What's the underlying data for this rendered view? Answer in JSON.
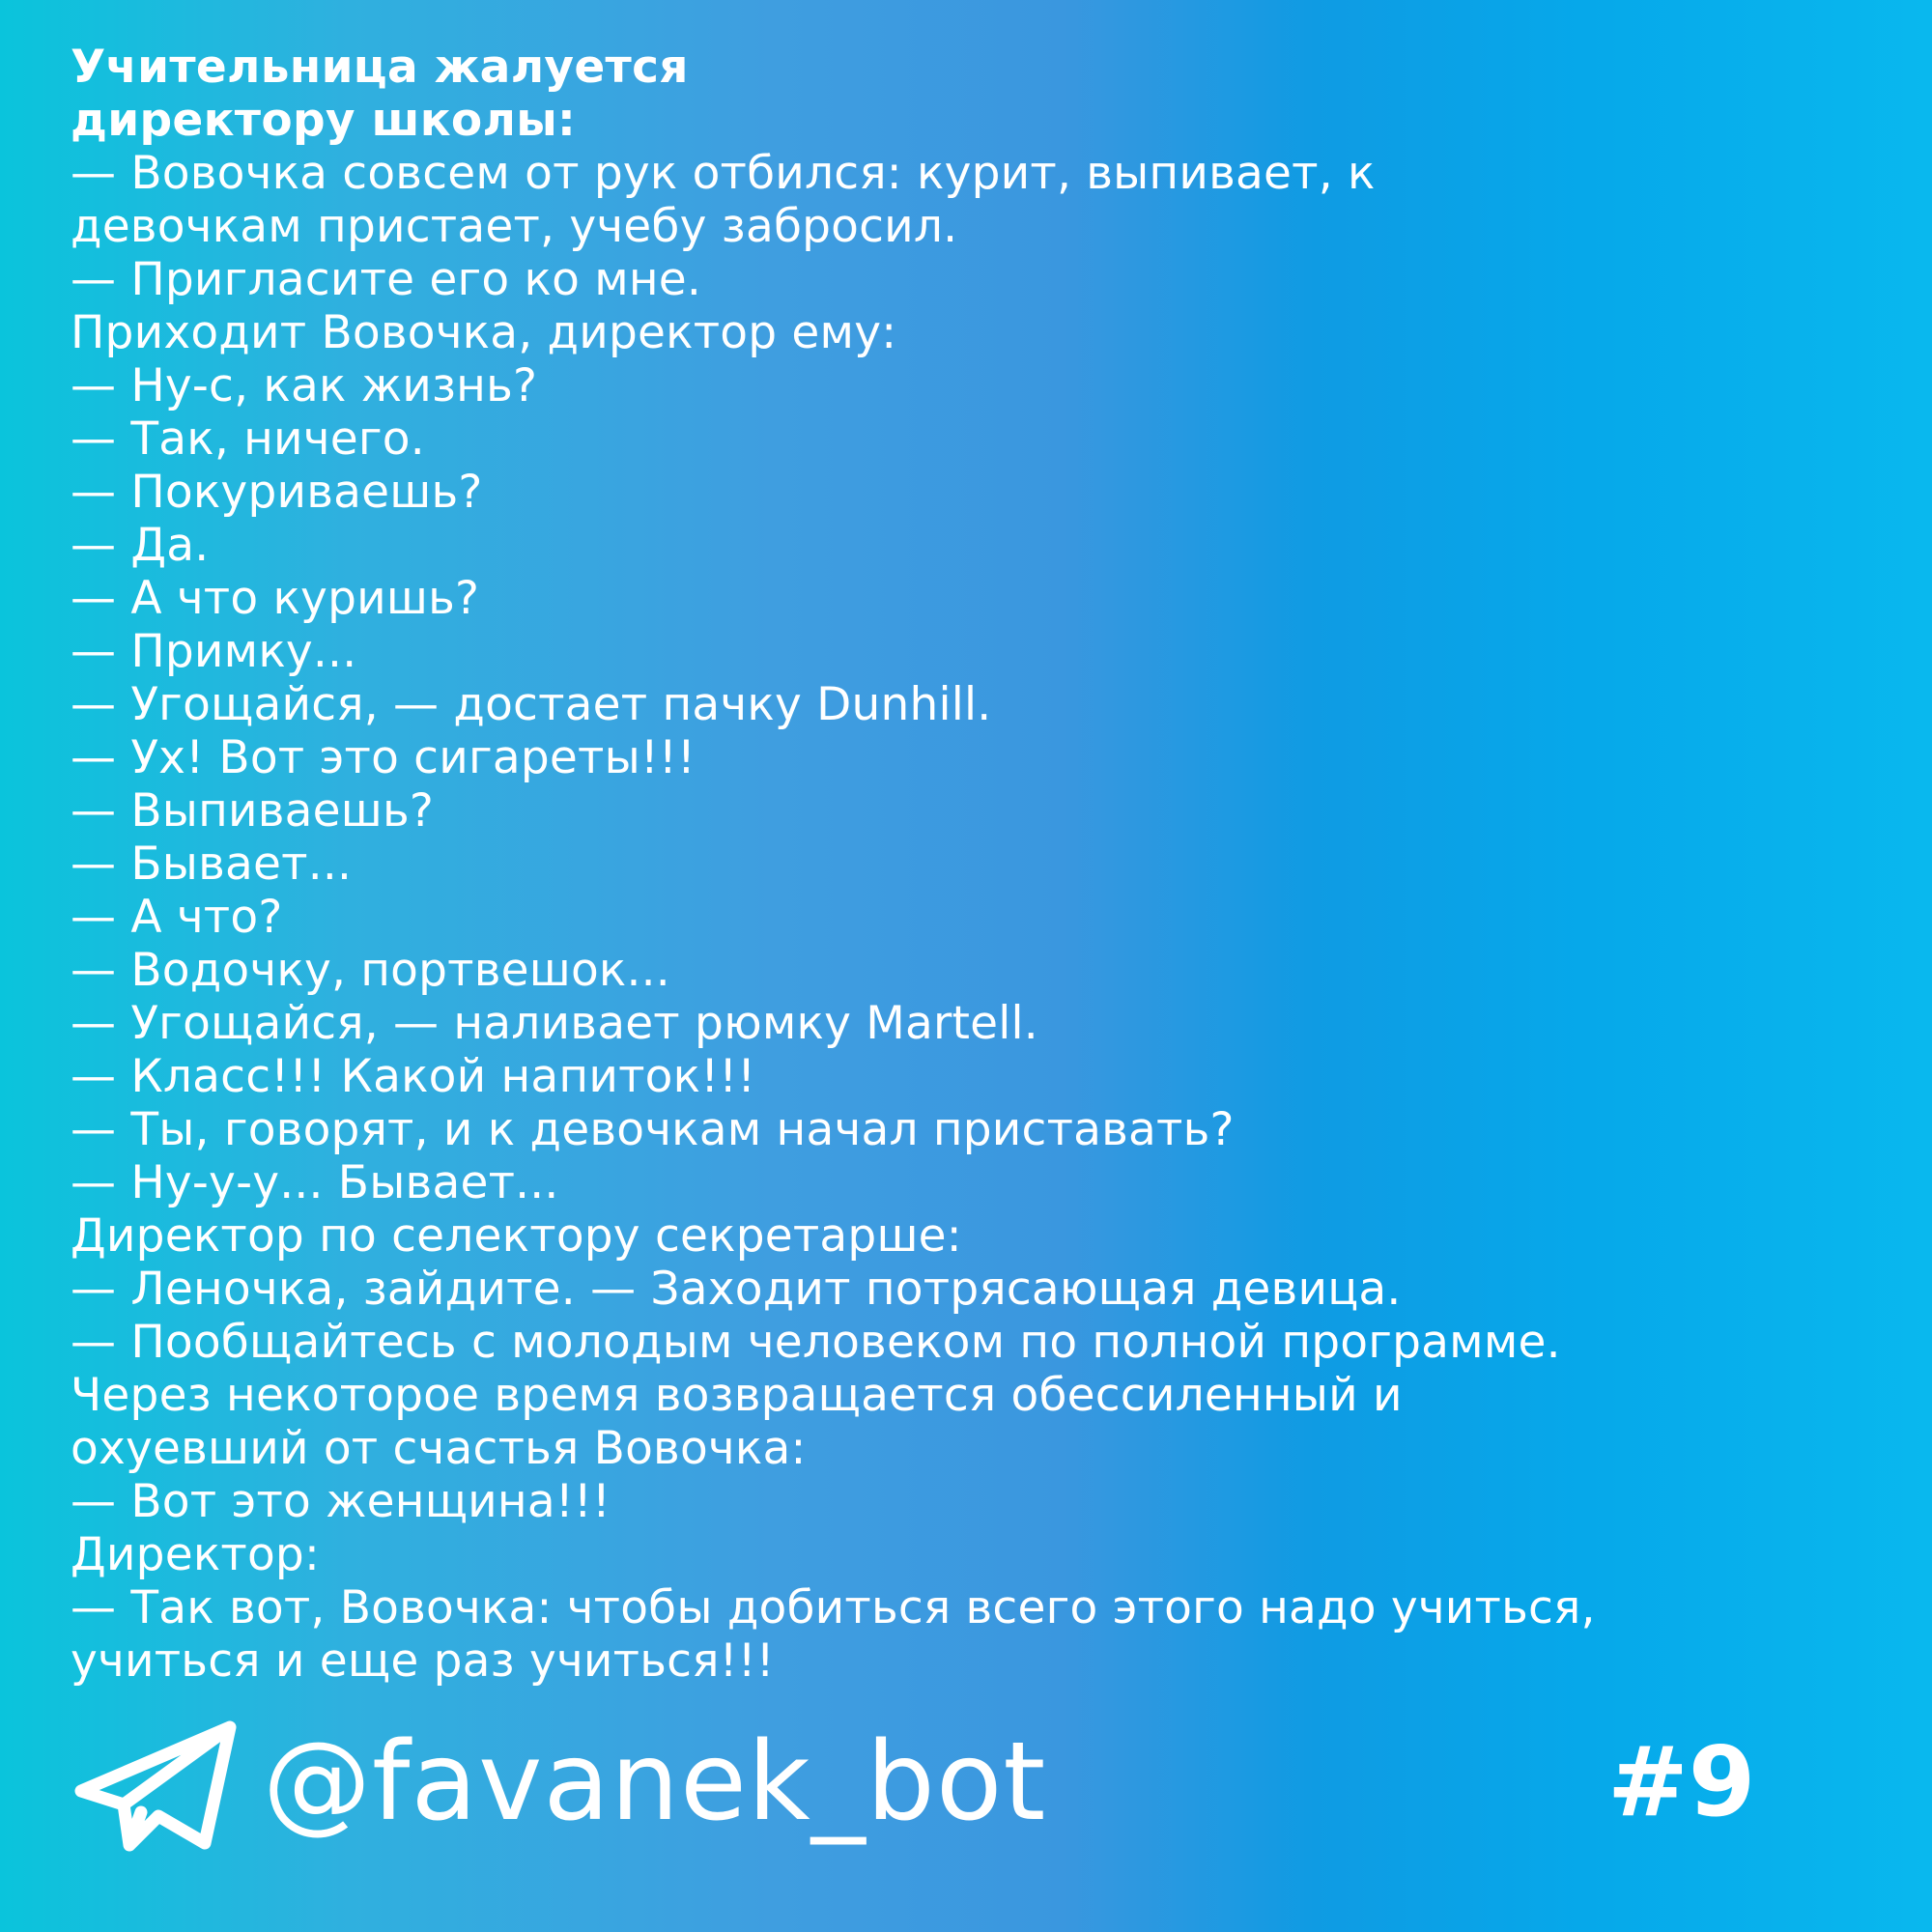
{
  "joke": {
    "title_lines": [
      "Учительница жалуется",
      "директору школы:"
    ],
    "lines": [
      "— Вовочка совсем от рук отбился: курит, выпивает, к",
      "девочкам пристает, учебу забросил.",
      "— Пригласите его ко мне.",
      "Приходит Вовочка, директор ему:",
      "— Ну-с, как жизнь?",
      "— Так, ничего.",
      "— Покуриваешь?",
      "— Да.",
      "— А что куришь?",
      "— Примку...",
      "— Угощайся, — достает пачку Dunhill.",
      "— Ух! Вот это сигареты!!!",
      "— Выпиваешь?",
      "— Бывает...",
      "— А что?",
      "— Водочку, портвешок...",
      "— Угощайся, — наливает рюмку Martell.",
      "— Класс!!! Какой напиток!!!",
      "— Ты, говорят, и к девочкам начал приставать?",
      "— Ну-у-у... Бывает...",
      "Директор по селектору секретарше:",
      "— Леночка, зайдите. — Заходит потрясающая девица.",
      "— Пообщайтесь с молодым человеком по полной программе.",
      "Через некоторое время возвращается обессиленный и",
      "охуевший от счастья Вовочка:",
      "— Вот это женщина!!!",
      "Директор:",
      "— Так вот, Вовочка: чтобы добиться всего этого надо учиться,",
      "учиться и еще раз учиться!!!"
    ]
  },
  "footer": {
    "icon": "telegram-paper-plane-icon",
    "handle": "@favanek_bot",
    "number": "#9"
  },
  "colors": {
    "text": "#ffffff",
    "gradient_left": "#0ac4dc",
    "gradient_mid": "#3f9ee0",
    "gradient_right": "#09b8ee"
  }
}
